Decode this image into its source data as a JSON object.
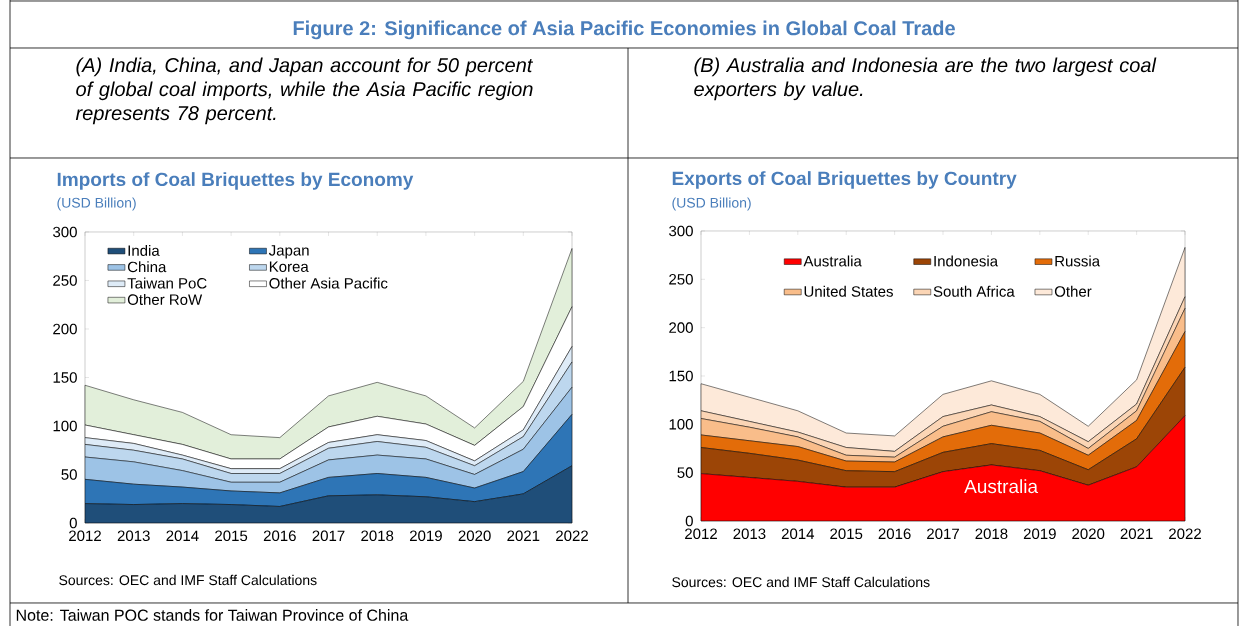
{
  "chart_data": [
    {
      "type": "area",
      "stacked": true,
      "title": "Imports of Coal Briquettes by Economy",
      "subtitle": "(USD Billion)",
      "categories": [
        "2012",
        "2013",
        "2014",
        "2015",
        "2016",
        "2017",
        "2018",
        "2019",
        "2020",
        "2021",
        "2022"
      ],
      "series": [
        {
          "name": "India",
          "color": "#1f4e79",
          "values": [
            20,
            19,
            20,
            19,
            17,
            28,
            29,
            27,
            22,
            30,
            59
          ]
        },
        {
          "name": "Japan",
          "color": "#2e75b6",
          "values": [
            25,
            21,
            17,
            14,
            14,
            19,
            22,
            20,
            14,
            23,
            53
          ]
        },
        {
          "name": "China",
          "color": "#9dc3e6",
          "values": [
            23,
            23,
            17,
            9,
            11,
            18,
            19,
            19,
            14,
            23,
            28
          ]
        },
        {
          "name": "Korea",
          "color": "#bdd7ee",
          "values": [
            13,
            12,
            12,
            9,
            9,
            12,
            14,
            12,
            9,
            13,
            26
          ]
        },
        {
          "name": "Taiwan PoC",
          "color": "#deebf7",
          "values": [
            7,
            7,
            4,
            5,
            5,
            6,
            7,
            7,
            5,
            7,
            16
          ]
        },
        {
          "name": "Other Asia Pacific",
          "color": "#ffffff",
          "values": [
            13,
            9,
            11,
            10,
            10,
            16,
            19,
            17,
            16,
            24,
            41
          ]
        },
        {
          "name": "Other RoW",
          "color": "#e2efda",
          "values": [
            41,
            36,
            33,
            25,
            22,
            32,
            35,
            29,
            18,
            26,
            60
          ]
        }
      ],
      "ylim": [
        0,
        300
      ],
      "yticks": [
        0,
        50,
        100,
        150,
        200,
        250,
        300
      ],
      "legend": "top left",
      "annotations": [
        "Figure 2: Significance of Asia Pacific Economies in Global Coal Trade",
        "(A) India, China, and Japan account for 50 percent of global coal imports, while the Asia Pacific region represents 78 percent.",
        "Sources: OEC and IMF Staff Calculations",
        "Note: Taiwan POC stands for Taiwan Province of China"
      ]
    },
    {
      "type": "area",
      "stacked": true,
      "title": "Exports of Coal Briquettes by Country",
      "subtitle": "(USD Billion)",
      "categories": [
        "2012",
        "2013",
        "2014",
        "2015",
        "2016",
        "2017",
        "2018",
        "2019",
        "2020",
        "2021",
        "2022"
      ],
      "series": [
        {
          "name": "Australia",
          "color": "#ff0000",
          "values": [
            49,
            45,
            41,
            35,
            35,
            51,
            58,
            52,
            37,
            56,
            109
          ]
        },
        {
          "name": "Indonesia",
          "color": "#9c4506",
          "values": [
            27,
            25,
            22,
            17,
            16,
            20,
            22,
            21,
            16,
            29,
            50
          ]
        },
        {
          "name": "Russia",
          "color": "#e36c09",
          "values": [
            13,
            13,
            14,
            10,
            10,
            16,
            19,
            18,
            15,
            19,
            37
          ]
        },
        {
          "name": "United States",
          "color": "#f9bd8a",
          "values": [
            17,
            14,
            10,
            6,
            5,
            11,
            14,
            12,
            7,
            10,
            24
          ]
        },
        {
          "name": "South Africa",
          "color": "#fbd5b5",
          "values": [
            8,
            6,
            5,
            8,
            6,
            10,
            7,
            5,
            7,
            7,
            12
          ]
        },
        {
          "name": "Other",
          "color": "#fde9d9",
          "values": [
            28,
            25,
            22,
            15,
            16,
            23,
            25,
            23,
            16,
            25,
            51
          ]
        }
      ],
      "ylim": [
        0,
        300
      ],
      "yticks": [
        0,
        50,
        100,
        150,
        200,
        250,
        300
      ],
      "legend": "top",
      "annotations": [
        "(B) Australia and Indonesia are the two largest coal exporters by value.",
        "Sources: OEC and IMF Staff Calculations",
        "Australia"
      ]
    }
  ]
}
